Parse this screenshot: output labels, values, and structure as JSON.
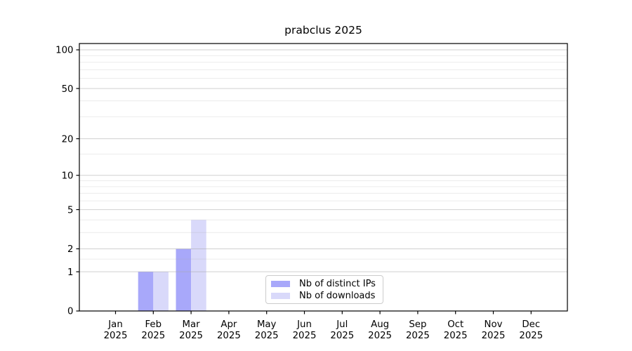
{
  "figure": {
    "background": "#ffffff"
  },
  "chart_data": {
    "type": "bar",
    "title": "prabclus 2025",
    "year_label": "2025",
    "categories": [
      "Jan",
      "Feb",
      "Mar",
      "Apr",
      "May",
      "Jun",
      "Jul",
      "Aug",
      "Sep",
      "Oct",
      "Nov",
      "Dec"
    ],
    "series": [
      {
        "name": "Nb of distinct IPs",
        "color": "#a8a8fa",
        "values": [
          0,
          1,
          2,
          0,
          0,
          0,
          0,
          0,
          0,
          0,
          0,
          0
        ]
      },
      {
        "name": "Nb of downloads",
        "color": "#d9d9fa",
        "values": [
          0,
          1,
          4,
          0,
          0,
          0,
          0,
          0,
          0,
          0,
          0,
          0
        ]
      }
    ],
    "yscale": "log1p",
    "ylim": [
      0,
      113
    ],
    "y_major_ticks": [
      0,
      1,
      2,
      5,
      10,
      20,
      50,
      100
    ],
    "y_minor_gridlines": [
      1.5,
      3,
      4,
      6,
      7,
      8,
      9,
      15,
      30,
      40,
      60,
      70,
      80,
      90
    ],
    "grid": true,
    "legend": {
      "position": "lower center"
    },
    "colors": {
      "axis": "#000000",
      "grid": "#aaaaaa",
      "text": "#000000",
      "legend_border": "#cccccc"
    }
  }
}
